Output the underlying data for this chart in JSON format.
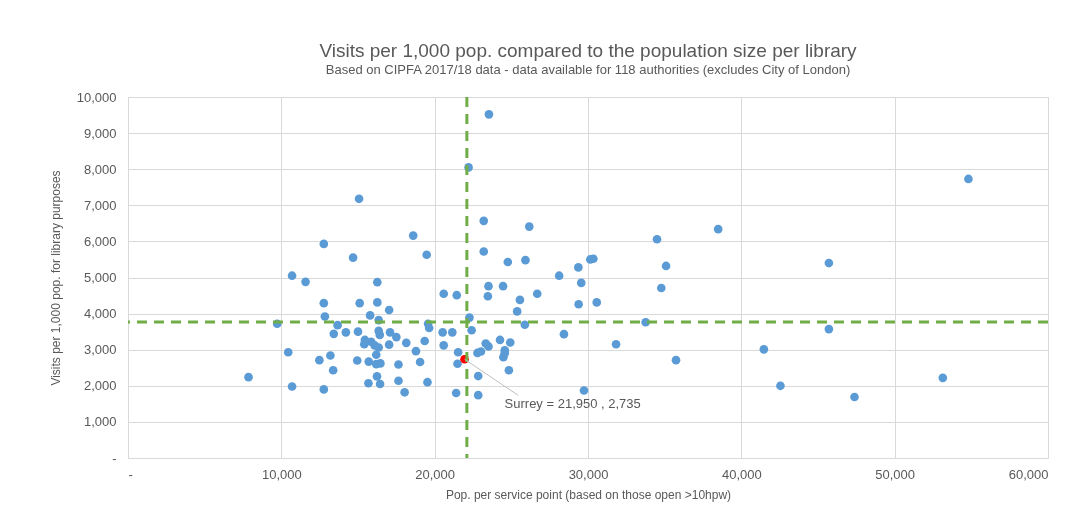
{
  "chart_data": {
    "type": "scatter",
    "title": "Visits per 1,000 pop. compared to the population size per library",
    "subtitle": "Based on CIPFA 2017/18 data - data available for 118 authorities (excludes City of London)",
    "xlabel": "Pop. per service point (based on those open >10hpw)",
    "ylabel": "Visits per 1,000 pop. for library purposes",
    "xlim": [
      0,
      60000
    ],
    "ylim": [
      0,
      10000
    ],
    "xticks": [
      {
        "value": 0,
        "label": "-"
      },
      {
        "value": 10000,
        "label": "10,000"
      },
      {
        "value": 20000,
        "label": "20,000"
      },
      {
        "value": 30000,
        "label": "30,000"
      },
      {
        "value": 40000,
        "label": "40,000"
      },
      {
        "value": 50000,
        "label": "50,000"
      },
      {
        "value": 60000,
        "label": "60,000"
      }
    ],
    "yticks": [
      {
        "value": 0,
        "label": "-"
      },
      {
        "value": 1000,
        "label": "1,000"
      },
      {
        "value": 2000,
        "label": "2,000"
      },
      {
        "value": 3000,
        "label": "3,000"
      },
      {
        "value": 4000,
        "label": "4,000"
      },
      {
        "value": 5000,
        "label": "5,000"
      },
      {
        "value": 6000,
        "label": "6,000"
      },
      {
        "value": 7000,
        "label": "7,000"
      },
      {
        "value": 8000,
        "label": "8,000"
      },
      {
        "value": 9000,
        "label": "9,000"
      },
      {
        "value": 10000,
        "label": "10,000"
      }
    ],
    "grid": true,
    "marker": "circle",
    "series": [
      {
        "color": "#5b9bd5",
        "x": [
          23540,
          22210,
          15070,
          23200,
          26170,
          18600,
          12770,
          19480,
          14680,
          23200,
          24770,
          25920,
          10700,
          11580,
          16260,
          20590,
          21440,
          23510,
          24460,
          23470,
          25560,
          26690,
          12770,
          15110,
          16260,
          17030,
          12840,
          15790,
          16350,
          25380,
          9730,
          19570,
          19640,
          25880,
          22270,
          22410,
          13670,
          13420,
          14210,
          15000,
          16350,
          16420,
          17090,
          17500,
          15450,
          15860,
          15410,
          16080,
          16350,
          17030,
          18150,
          19350,
          20520,
          21150,
          20590,
          10450,
          13200,
          12480,
          14950,
          15700,
          16190,
          16190,
          16460,
          17640,
          18780,
          19050,
          21530,
          21490,
          22790,
          23020,
          23330,
          23510,
          24260,
          24930,
          24570,
          24480,
          24570,
          13380,
          16240,
          22840,
          24840,
          7860,
          10700,
          12770,
          15680,
          16440,
          17640,
          19530,
          18040,
          21400,
          22840,
          28120,
          29370,
          29560,
          29390,
          30150,
          30350,
          30570,
          28430,
          31830,
          29740,
          34500,
          35090,
          34780,
          33760,
          35740,
          38490,
          41470,
          42550,
          45710,
          45710,
          47380,
          53140,
          54810
        ],
        "values": [
          9520,
          8050,
          7180,
          6570,
          6410,
          6160,
          5930,
          5630,
          5550,
          5720,
          5430,
          5480,
          5050,
          4880,
          4870,
          4550,
          4510,
          4760,
          4760,
          4480,
          4380,
          4550,
          4290,
          4290,
          4310,
          4100,
          3920,
          3950,
          3820,
          4060,
          3720,
          3720,
          3600,
          3690,
          3890,
          3540,
          3680,
          3440,
          3480,
          3500,
          3520,
          3410,
          3480,
          3350,
          3270,
          3220,
          3150,
          3120,
          3060,
          3140,
          3190,
          3240,
          3480,
          3480,
          3120,
          2930,
          2840,
          2710,
          2700,
          2670,
          2860,
          2600,
          2620,
          2590,
          2960,
          2660,
          2930,
          2610,
          2910,
          2950,
          3170,
          3090,
          3270,
          3200,
          2980,
          2790,
          2900,
          2430,
          2260,
          2270,
          2430,
          2240,
          1980,
          1900,
          2070,
          2050,
          2140,
          2100,
          1820,
          1800,
          1740,
          5050,
          5280,
          4850,
          4260,
          5500,
          5520,
          4310,
          3430,
          3150,
          1870,
          6060,
          5320,
          4710,
          3760,
          2710,
          6340,
          3010,
          2000,
          5400,
          3570,
          1690,
          2220,
          7730
        ]
      },
      {
        "color": "#ff0000",
        "x": [
          21950
        ],
        "values": [
          2735
        ]
      }
    ],
    "ref_lines": [
      {
        "axis": "x",
        "value": 22100,
        "color": "#70ad47",
        "line_style": "dashed"
      },
      {
        "axis": "y",
        "value": 3770,
        "color": "#70ad47",
        "line_style": "dashed"
      }
    ],
    "annotations": [
      {
        "text": "Surrey = 21,950 ,  2,735",
        "x": 21950,
        "y": 2735
      }
    ]
  }
}
